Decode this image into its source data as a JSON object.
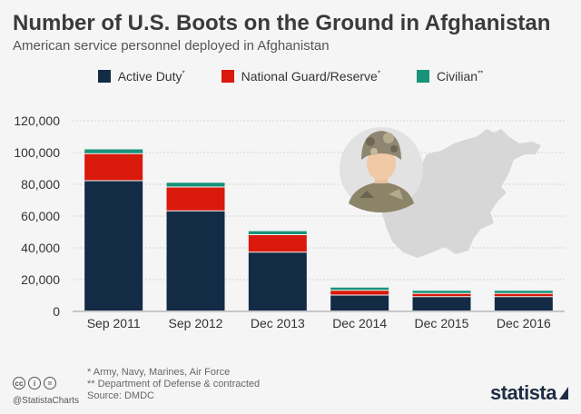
{
  "header": {
    "title": "Number of U.S. Boots on the Ground in Afghanistan",
    "subtitle": "American service personnel deployed in Afghanistan"
  },
  "legend": [
    {
      "label": "Active Duty",
      "mark": "*",
      "color": "#132b45"
    },
    {
      "label": "National Guard/Reserve",
      "mark": "*",
      "color": "#d9190b"
    },
    {
      "label": "Civilian",
      "mark": "**",
      "color": "#17937a"
    }
  ],
  "chart_data": {
    "type": "bar",
    "stacked": true,
    "title": "Number of U.S. Boots on the Ground in Afghanistan",
    "subtitle": "American service personnel deployed in Afghanistan",
    "categories": [
      "Sep 2011",
      "Sep 2012",
      "Dec 2013",
      "Dec 2014",
      "Dec 2015",
      "Dec 2016"
    ],
    "series": [
      {
        "name": "Active Duty",
        "color": "#132b45",
        "values": [
          82000,
          63000,
          37000,
          10000,
          9000,
          9000
        ]
      },
      {
        "name": "National Guard/Reserve",
        "color": "#d9190b",
        "values": [
          17000,
          15000,
          11000,
          3000,
          2000,
          2000
        ]
      },
      {
        "name": "Civilian",
        "color": "#17937a",
        "values": [
          3000,
          3000,
          2500,
          2000,
          2000,
          2000
        ]
      }
    ],
    "ylim": [
      0,
      120000
    ],
    "yticks": [
      0,
      20000,
      40000,
      60000,
      80000,
      100000,
      120000
    ],
    "ytick_labels": [
      "0",
      "20,000",
      "40,000",
      "60,000",
      "80,000",
      "100,000",
      "120,000"
    ],
    "grid": "horizontal",
    "legend_position": "top"
  },
  "illustration": {
    "icons": [
      "afghanistan-map-icon",
      "soldier-icon"
    ]
  },
  "footer": {
    "note1": "*   Army, Navy, Marines, Air Force",
    "note2": "** Department of Defense & contracted",
    "source": "Source: DMDC",
    "handle": "@StatistaCharts",
    "brand": "statista",
    "license_icons": [
      "cc",
      "i",
      "="
    ]
  }
}
